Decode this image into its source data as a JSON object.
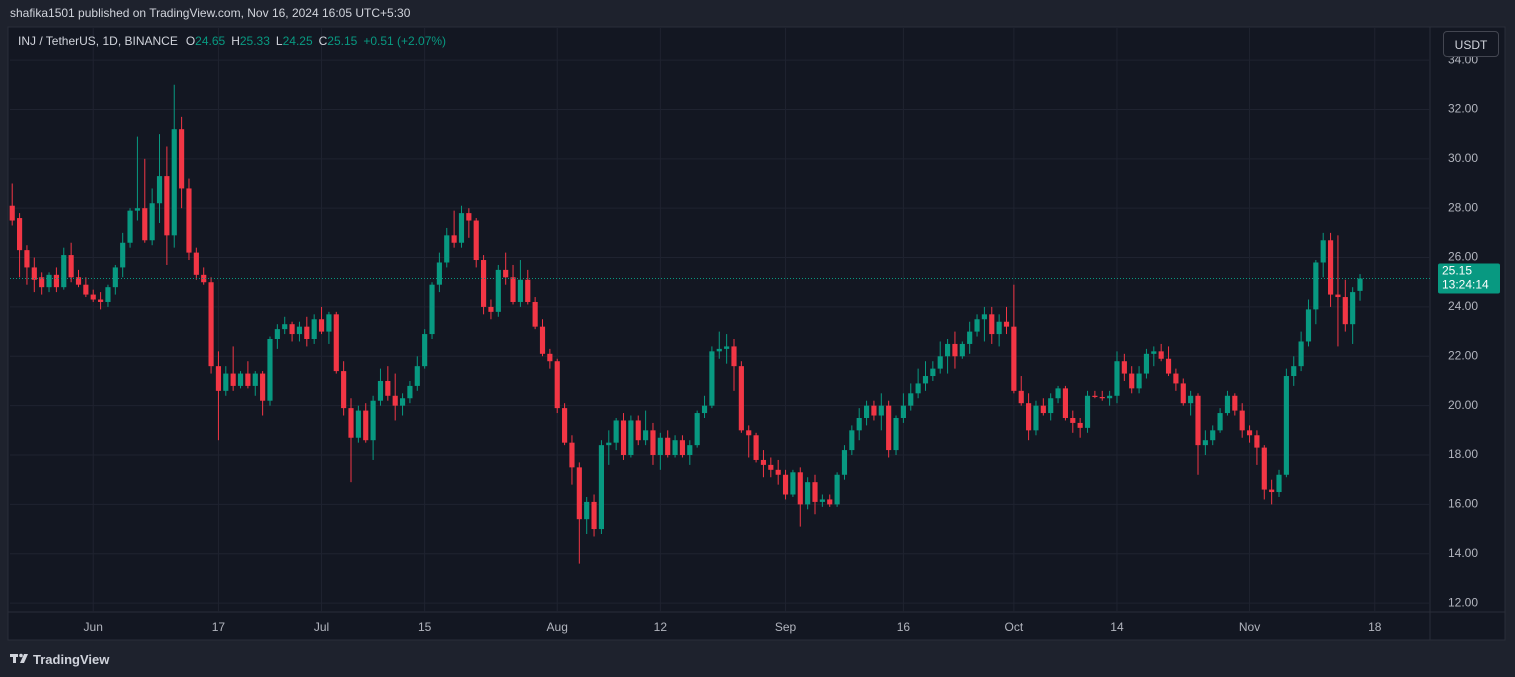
{
  "header": "shafika1501 published on TradingView.com, Nov 16, 2024 16:05 UTC+5:30",
  "chart_data": {
    "type": "candlestick",
    "symbol": "INJ / TetherUS, 1D, BINANCE",
    "legend_labels": [
      "O",
      "H",
      "L",
      "C"
    ],
    "change": "+0.51 (+2.07%)",
    "currency": "USDT",
    "countdown": "13:24:14",
    "up_color": "#089981",
    "down_color": "#f23645",
    "grid": true,
    "xlim": [
      -0.3,
      192.5
    ],
    "xticks": [
      {
        "value": 11,
        "label": "Jun"
      },
      {
        "value": 28,
        "label": "17"
      },
      {
        "value": 42,
        "label": "Jul"
      },
      {
        "value": 56,
        "label": "15"
      },
      {
        "value": 74,
        "label": "Aug"
      },
      {
        "value": 88,
        "label": "12"
      },
      {
        "value": 105,
        "label": "Sep"
      },
      {
        "value": 121,
        "label": "16"
      },
      {
        "value": 136,
        "label": "Oct"
      },
      {
        "value": 150,
        "label": "14"
      },
      {
        "value": 168,
        "label": "Nov"
      },
      {
        "value": 185,
        "label": "18"
      }
    ],
    "ylim": [
      11.64,
      35.3
    ],
    "yticks": [
      {
        "value": 12,
        "label": "12.00"
      },
      {
        "value": 14,
        "label": "14.00"
      },
      {
        "value": 16,
        "label": "16.00"
      },
      {
        "value": 18,
        "label": "18.00"
      },
      {
        "value": 20,
        "label": "20.00"
      },
      {
        "value": 22,
        "label": "22.00"
      },
      {
        "value": 24,
        "label": "24.00"
      },
      {
        "value": 26,
        "label": "26.00"
      },
      {
        "value": 28,
        "label": "28.00"
      },
      {
        "value": 30,
        "label": "30.00"
      },
      {
        "value": 32,
        "label": "32.00"
      },
      {
        "value": 34,
        "label": "34.00"
      }
    ],
    "ohlc": [
      [
        28.1,
        29.0,
        27.3,
        27.5
      ],
      [
        27.6,
        27.8,
        25.2,
        26.3
      ],
      [
        26.3,
        26.5,
        24.9,
        25.6
      ],
      [
        25.6,
        26.0,
        24.6,
        25.1
      ],
      [
        25.2,
        25.4,
        24.5,
        24.8
      ],
      [
        24.8,
        25.4,
        24.6,
        25.3
      ],
      [
        25.3,
        25.6,
        24.6,
        24.8
      ],
      [
        24.8,
        26.4,
        24.7,
        26.1
      ],
      [
        26.1,
        26.6,
        25.0,
        25.2
      ],
      [
        25.2,
        25.5,
        24.8,
        24.9
      ],
      [
        24.9,
        25.2,
        24.4,
        24.5
      ],
      [
        24.5,
        24.7,
        24.2,
        24.3
      ],
      [
        24.3,
        24.6,
        23.9,
        24.2
      ],
      [
        24.2,
        24.9,
        24.0,
        24.8
      ],
      [
        24.8,
        25.7,
        24.5,
        25.6
      ],
      [
        25.6,
        27.0,
        25.2,
        26.6
      ],
      [
        26.6,
        28.0,
        26.4,
        27.9
      ],
      [
        27.9,
        30.9,
        27.5,
        28.0
      ],
      [
        28.0,
        30.0,
        26.6,
        26.7
      ],
      [
        26.7,
        28.8,
        26.5,
        28.2
      ],
      [
        28.2,
        31.0,
        27.4,
        29.3
      ],
      [
        29.3,
        30.5,
        25.7,
        26.9
      ],
      [
        26.9,
        33.0,
        26.4,
        31.2
      ],
      [
        31.2,
        31.7,
        28.0,
        28.8
      ],
      [
        28.8,
        29.2,
        25.9,
        26.2
      ],
      [
        26.2,
        26.4,
        25.1,
        25.3
      ],
      [
        25.3,
        25.6,
        24.9,
        25.0
      ],
      [
        25.0,
        25.2,
        21.3,
        21.6
      ],
      [
        21.6,
        22.2,
        18.6,
        20.6
      ],
      [
        20.6,
        21.6,
        20.4,
        21.3
      ],
      [
        21.3,
        22.4,
        20.6,
        20.8
      ],
      [
        20.8,
        21.4,
        20.7,
        21.3
      ],
      [
        21.3,
        21.8,
        20.7,
        20.8
      ],
      [
        20.8,
        21.4,
        20.4,
        21.3
      ],
      [
        21.3,
        21.4,
        19.6,
        20.2
      ],
      [
        20.2,
        22.8,
        20.0,
        22.7
      ],
      [
        22.7,
        23.3,
        22.3,
        23.1
      ],
      [
        23.1,
        23.6,
        22.9,
        23.3
      ],
      [
        23.3,
        23.4,
        22.6,
        22.9
      ],
      [
        22.9,
        23.4,
        22.6,
        23.2
      ],
      [
        23.2,
        23.6,
        22.4,
        22.7
      ],
      [
        22.7,
        23.7,
        22.5,
        23.5
      ],
      [
        23.5,
        24.0,
        22.9,
        23.0
      ],
      [
        23.0,
        23.8,
        22.5,
        23.7
      ],
      [
        23.7,
        23.8,
        21.3,
        21.4
      ],
      [
        21.4,
        21.8,
        19.6,
        19.9
      ],
      [
        19.9,
        20.3,
        16.9,
        18.7
      ],
      [
        18.7,
        20.0,
        18.5,
        19.8
      ],
      [
        19.8,
        20.1,
        18.5,
        18.6
      ],
      [
        18.6,
        20.4,
        17.8,
        20.2
      ],
      [
        20.2,
        21.5,
        20.0,
        21.0
      ],
      [
        21.0,
        21.6,
        20.2,
        20.4
      ],
      [
        20.4,
        21.3,
        19.4,
        20.0
      ],
      [
        20.0,
        20.5,
        19.6,
        20.3
      ],
      [
        20.3,
        21.0,
        20.1,
        20.8
      ],
      [
        20.8,
        22.0,
        20.6,
        21.6
      ],
      [
        21.6,
        23.1,
        21.5,
        22.9
      ],
      [
        22.9,
        25.0,
        22.7,
        24.9
      ],
      [
        24.9,
        26.2,
        24.6,
        25.8
      ],
      [
        25.8,
        27.2,
        25.6,
        26.9
      ],
      [
        26.9,
        27.9,
        26.4,
        26.6
      ],
      [
        26.6,
        28.1,
        26.4,
        27.8
      ],
      [
        27.8,
        28.0,
        26.8,
        27.5
      ],
      [
        27.5,
        27.6,
        25.6,
        25.9
      ],
      [
        25.9,
        26.1,
        23.7,
        24.0
      ],
      [
        24.0,
        24.3,
        23.5,
        23.8
      ],
      [
        23.8,
        25.7,
        23.6,
        25.5
      ],
      [
        25.5,
        26.2,
        24.9,
        25.2
      ],
      [
        25.2,
        25.7,
        24.1,
        24.2
      ],
      [
        24.2,
        25.9,
        24.0,
        25.1
      ],
      [
        25.1,
        25.5,
        24.1,
        24.2
      ],
      [
        24.2,
        24.4,
        23.1,
        23.2
      ],
      [
        23.2,
        23.5,
        22.0,
        22.1
      ],
      [
        22.1,
        22.3,
        21.5,
        21.8
      ],
      [
        21.8,
        21.9,
        19.7,
        19.9
      ],
      [
        19.9,
        20.1,
        18.4,
        18.5
      ],
      [
        18.5,
        18.8,
        16.8,
        17.5
      ],
      [
        17.5,
        17.7,
        13.6,
        15.4
      ],
      [
        15.4,
        16.3,
        14.8,
        16.1
      ],
      [
        16.1,
        16.4,
        14.7,
        15.0
      ],
      [
        15.0,
        18.6,
        14.8,
        18.4
      ],
      [
        18.4,
        19.0,
        17.6,
        18.5
      ],
      [
        18.5,
        19.5,
        18.2,
        19.4
      ],
      [
        19.4,
        19.7,
        17.8,
        18.0
      ],
      [
        18.0,
        19.6,
        17.9,
        19.4
      ],
      [
        19.4,
        19.6,
        18.4,
        18.6
      ],
      [
        18.6,
        19.8,
        18.4,
        19.0
      ],
      [
        19.0,
        19.3,
        17.6,
        18.0
      ],
      [
        18.0,
        18.9,
        17.4,
        18.7
      ],
      [
        18.7,
        19.0,
        17.9,
        18.0
      ],
      [
        18.0,
        18.8,
        17.9,
        18.6
      ],
      [
        18.6,
        18.8,
        17.9,
        18.0
      ],
      [
        18.0,
        18.6,
        17.6,
        18.4
      ],
      [
        18.4,
        19.8,
        18.3,
        19.7
      ],
      [
        19.7,
        20.4,
        19.5,
        20.0
      ],
      [
        20.0,
        22.4,
        19.9,
        22.2
      ],
      [
        22.2,
        23.0,
        21.9,
        22.3
      ],
      [
        22.3,
        22.9,
        21.7,
        22.4
      ],
      [
        22.4,
        22.7,
        20.6,
        21.6
      ],
      [
        21.6,
        21.8,
        18.9,
        19.0
      ],
      [
        19.0,
        19.2,
        17.9,
        18.8
      ],
      [
        18.8,
        18.9,
        17.7,
        17.8
      ],
      [
        17.8,
        18.2,
        17.1,
        17.6
      ],
      [
        17.6,
        17.9,
        17.1,
        17.4
      ],
      [
        17.4,
        17.8,
        16.8,
        17.2
      ],
      [
        17.2,
        17.4,
        16.2,
        16.4
      ],
      [
        16.4,
        17.4,
        16.3,
        17.3
      ],
      [
        17.3,
        17.5,
        15.1,
        16.0
      ],
      [
        16.0,
        17.1,
        15.8,
        16.9
      ],
      [
        16.9,
        17.2,
        15.6,
        16.1
      ],
      [
        16.1,
        16.4,
        15.9,
        16.2
      ],
      [
        16.2,
        16.4,
        15.9,
        16.0
      ],
      [
        16.0,
        17.3,
        15.9,
        17.2
      ],
      [
        17.2,
        18.4,
        17.0,
        18.2
      ],
      [
        18.2,
        19.2,
        18.0,
        19.0
      ],
      [
        19.0,
        19.9,
        18.6,
        19.5
      ],
      [
        19.5,
        20.2,
        19.2,
        20.0
      ],
      [
        20.0,
        20.2,
        19.4,
        19.6
      ],
      [
        19.6,
        20.5,
        19.0,
        20.0
      ],
      [
        20.0,
        20.2,
        17.9,
        18.2
      ],
      [
        18.2,
        19.6,
        18.0,
        19.5
      ],
      [
        19.5,
        20.5,
        19.3,
        20.0
      ],
      [
        20.0,
        20.9,
        19.8,
        20.5
      ],
      [
        20.5,
        21.5,
        20.3,
        20.9
      ],
      [
        20.9,
        21.8,
        20.6,
        21.2
      ],
      [
        21.2,
        21.8,
        21.0,
        21.5
      ],
      [
        21.5,
        22.6,
        21.3,
        22.0
      ],
      [
        22.0,
        22.7,
        21.3,
        22.5
      ],
      [
        22.5,
        23.0,
        21.5,
        22.0
      ],
      [
        22.0,
        22.6,
        21.9,
        22.5
      ],
      [
        22.5,
        23.4,
        22.1,
        23.0
      ],
      [
        23.0,
        23.7,
        22.8,
        23.5
      ],
      [
        23.5,
        24.0,
        22.6,
        23.7
      ],
      [
        23.7,
        24.0,
        22.5,
        22.9
      ],
      [
        22.9,
        23.7,
        22.4,
        23.4
      ],
      [
        23.4,
        24.0,
        22.9,
        23.2
      ],
      [
        23.2,
        24.9,
        20.5,
        20.6
      ],
      [
        20.6,
        21.2,
        20.0,
        20.1
      ],
      [
        20.1,
        20.5,
        18.6,
        19.0
      ],
      [
        19.0,
        20.2,
        18.8,
        20.0
      ],
      [
        20.0,
        20.3,
        19.6,
        19.7
      ],
      [
        19.7,
        20.5,
        19.4,
        20.3
      ],
      [
        20.3,
        20.8,
        20.1,
        20.7
      ],
      [
        20.7,
        20.8,
        19.4,
        19.5
      ],
      [
        19.5,
        19.8,
        18.9,
        19.3
      ],
      [
        19.3,
        19.5,
        18.7,
        19.1
      ],
      [
        19.1,
        20.6,
        18.9,
        20.4
      ],
      [
        20.4,
        20.6,
        20.3,
        20.35
      ],
      [
        20.35,
        20.6,
        20.2,
        20.3
      ],
      [
        20.3,
        20.6,
        20.0,
        20.4
      ],
      [
        20.4,
        22.2,
        20.1,
        21.8
      ],
      [
        21.8,
        22.1,
        21.0,
        21.3
      ],
      [
        21.3,
        21.6,
        20.5,
        20.7
      ],
      [
        20.7,
        21.6,
        20.5,
        21.3
      ],
      [
        21.3,
        22.3,
        21.1,
        22.1
      ],
      [
        22.1,
        22.4,
        21.6,
        22.2
      ],
      [
        22.2,
        22.5,
        21.8,
        21.9
      ],
      [
        21.9,
        22.4,
        21.2,
        21.3
      ],
      [
        21.3,
        21.5,
        20.6,
        20.9
      ],
      [
        20.9,
        21.1,
        20.0,
        20.1
      ],
      [
        20.1,
        20.6,
        19.6,
        20.4
      ],
      [
        20.4,
        20.5,
        17.2,
        18.4
      ],
      [
        18.4,
        19.0,
        18.0,
        18.6
      ],
      [
        18.6,
        19.2,
        18.4,
        19.0
      ],
      [
        19.0,
        19.9,
        18.9,
        19.7
      ],
      [
        19.7,
        20.6,
        19.6,
        20.4
      ],
      [
        20.4,
        20.5,
        19.6,
        19.8
      ],
      [
        19.8,
        20.1,
        18.7,
        19.0
      ],
      [
        19.0,
        19.2,
        18.5,
        18.8
      ],
      [
        18.8,
        19.0,
        17.6,
        18.3
      ],
      [
        18.3,
        18.4,
        16.2,
        16.6
      ],
      [
        16.6,
        17.0,
        16.0,
        16.5
      ],
      [
        16.5,
        17.4,
        16.3,
        17.2
      ],
      [
        17.2,
        21.5,
        17.1,
        21.2
      ],
      [
        21.2,
        22.0,
        20.8,
        21.6
      ],
      [
        21.6,
        23.0,
        21.4,
        22.6
      ],
      [
        22.6,
        24.3,
        22.4,
        23.9
      ],
      [
        23.9,
        25.9,
        23.3,
        25.8
      ],
      [
        25.8,
        27.0,
        25.2,
        26.7
      ],
      [
        26.7,
        27.0,
        24.0,
        24.5
      ],
      [
        24.5,
        26.9,
        22.4,
        24.4
      ],
      [
        24.4,
        25.1,
        23.0,
        23.3
      ],
      [
        23.3,
        24.8,
        22.5,
        24.6
      ],
      [
        24.65,
        25.33,
        24.25,
        25.15
      ]
    ]
  },
  "footer": {
    "brand": "TradingView"
  }
}
